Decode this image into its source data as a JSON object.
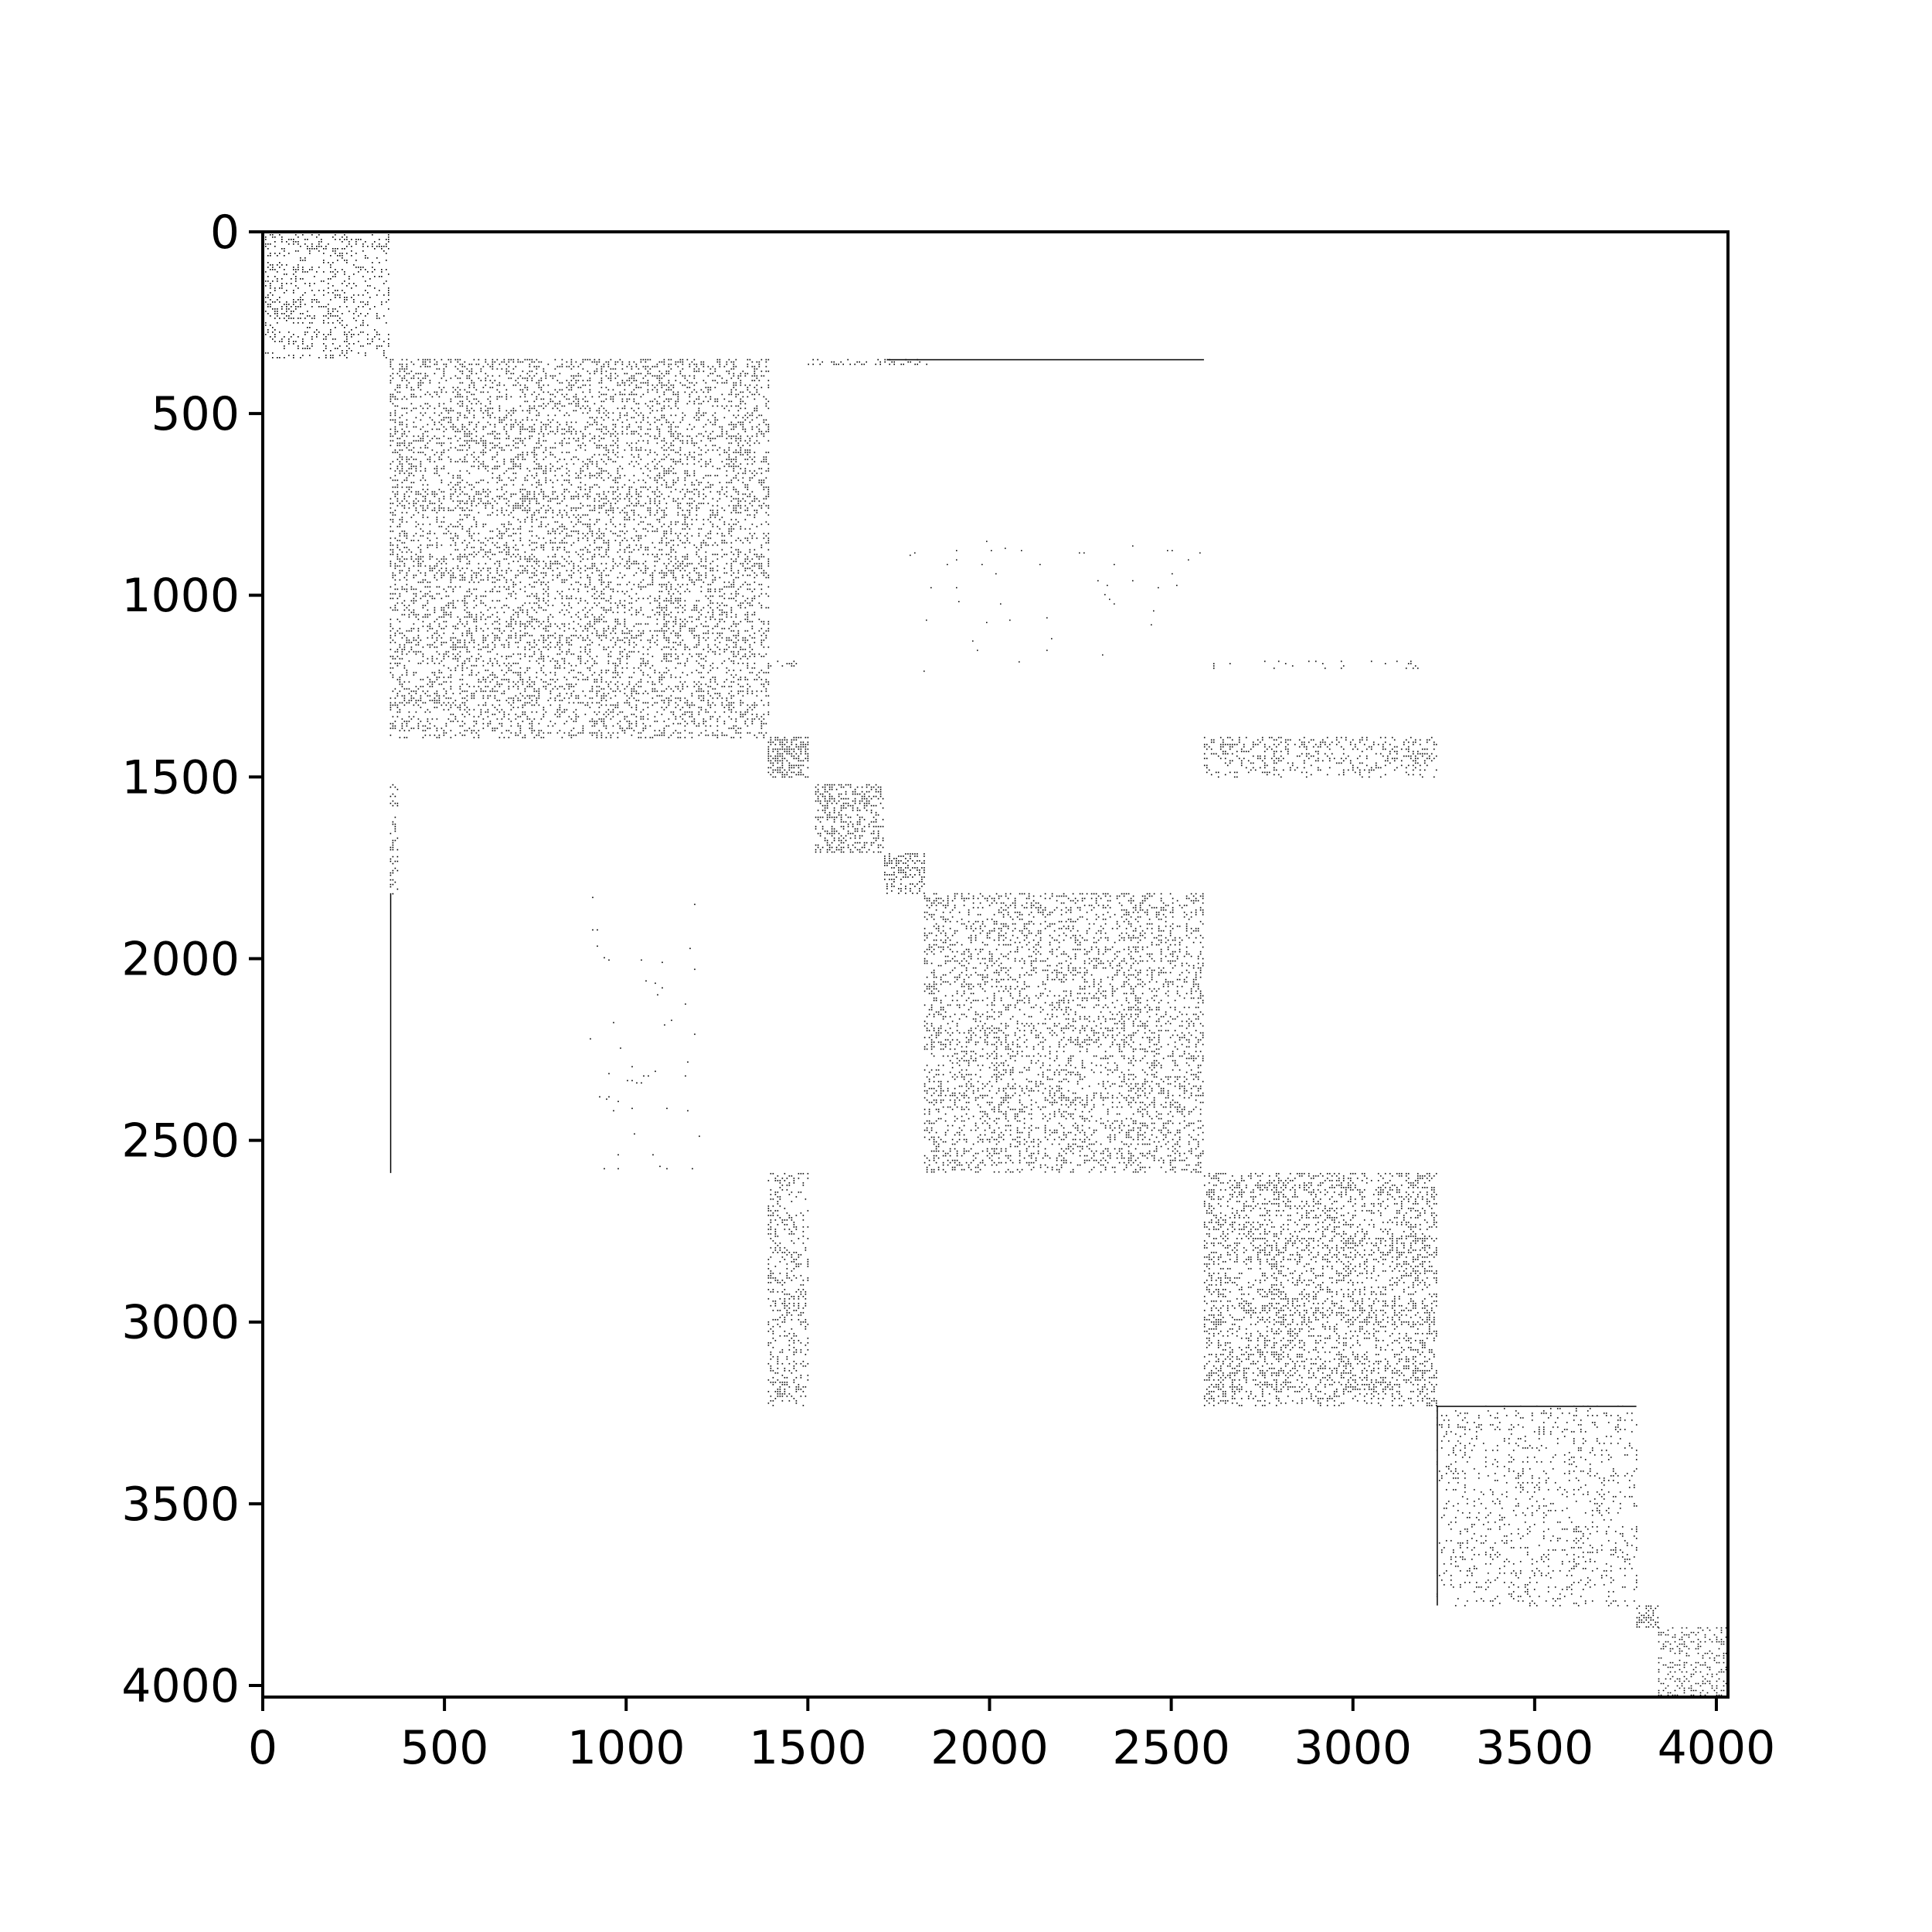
{
  "chart_data": {
    "type": "heatmap",
    "subtype": "sparsity-pattern",
    "title": "",
    "xlabel": "",
    "ylabel": "",
    "matrix_size": 4032,
    "xlim": [
      0,
      4032
    ],
    "ylim": [
      4032,
      0
    ],
    "x_axis_position": "bottom",
    "y_axis_inverted": true,
    "grid": false,
    "legend": "none",
    "xticks": [
      0,
      500,
      1000,
      1500,
      2000,
      2500,
      3000,
      3500,
      4000
    ],
    "yticks": [
      0,
      500,
      1000,
      1500,
      2000,
      2500,
      3000,
      3500,
      4000
    ],
    "xtick_labels": [
      "0",
      "500",
      "1000",
      "1500",
      "2000",
      "2500",
      "3000",
      "3500",
      "4000"
    ],
    "ytick_labels": [
      "0",
      "500",
      "1000",
      "1500",
      "2000",
      "2500",
      "3000",
      "3500",
      "4000"
    ],
    "marker_color": "#000000",
    "diagonal_blocks": [
      {
        "row_start": 0,
        "row_end": 350,
        "col_start": 0,
        "col_end": 350,
        "density": 0.35
      },
      {
        "row_start": 350,
        "row_end": 1390,
        "col_start": 350,
        "col_end": 1390,
        "density": 0.42
      },
      {
        "row_start": 1390,
        "row_end": 1500,
        "col_start": 1390,
        "col_end": 1500,
        "density": 0.85
      },
      {
        "row_start": 1520,
        "row_end": 1710,
        "col_start": 1520,
        "col_end": 1710,
        "density": 0.6
      },
      {
        "row_start": 1710,
        "row_end": 1820,
        "col_start": 1710,
        "col_end": 1820,
        "density": 0.55
      },
      {
        "row_start": 1820,
        "row_end": 2590,
        "col_start": 1820,
        "col_end": 2590,
        "density": 0.38
      },
      {
        "row_start": 2590,
        "row_end": 3230,
        "col_start": 2590,
        "col_end": 3230,
        "density": 0.45
      },
      {
        "row_start": 3230,
        "row_end": 3780,
        "col_start": 3230,
        "col_end": 3780,
        "density": 0.2
      },
      {
        "row_start": 3780,
        "row_end": 3840,
        "col_start": 3780,
        "col_end": 3840,
        "density": 0.5
      },
      {
        "row_start": 3840,
        "row_end": 4032,
        "col_start": 3840,
        "col_end": 4032,
        "density": 0.4
      }
    ],
    "off_diagonal_blocks": [
      {
        "row_start": 1390,
        "row_end": 1500,
        "col_start": 2590,
        "col_end": 3230,
        "density": 0.35
      },
      {
        "row_start": 2590,
        "row_end": 3230,
        "col_start": 1390,
        "col_end": 1500,
        "density": 0.35
      },
      {
        "row_start": 1520,
        "row_end": 1820,
        "col_start": 350,
        "col_end": 370,
        "density": 0.4
      },
      {
        "row_start": 350,
        "row_end": 365,
        "col_start": 1500,
        "col_end": 1830,
        "density": 0.35
      }
    ],
    "line_segments": [
      {
        "orientation": "horizontal",
        "at": 352,
        "from": 1720,
        "to": 2590
      },
      {
        "orientation": "vertical",
        "at": 352,
        "from": 1820,
        "to": 2590
      },
      {
        "orientation": "horizontal",
        "at": 3232,
        "from": 3230,
        "to": 3780
      },
      {
        "orientation": "vertical",
        "at": 3232,
        "from": 3230,
        "to": 3780
      }
    ],
    "scattered_regions": [
      {
        "row_start": 850,
        "row_end": 1220,
        "col_start": 1780,
        "col_end": 2590,
        "density": 0.01
      },
      {
        "row_start": 1830,
        "row_end": 2580,
        "col_start": 900,
        "col_end": 1200,
        "density": 0.01
      },
      {
        "row_start": 1180,
        "row_end": 1200,
        "col_start": 2590,
        "col_end": 3230,
        "density": 0.1
      },
      {
        "row_start": 1180,
        "row_end": 1200,
        "col_start": 1390,
        "col_end": 1500,
        "density": 0.15
      }
    ]
  }
}
